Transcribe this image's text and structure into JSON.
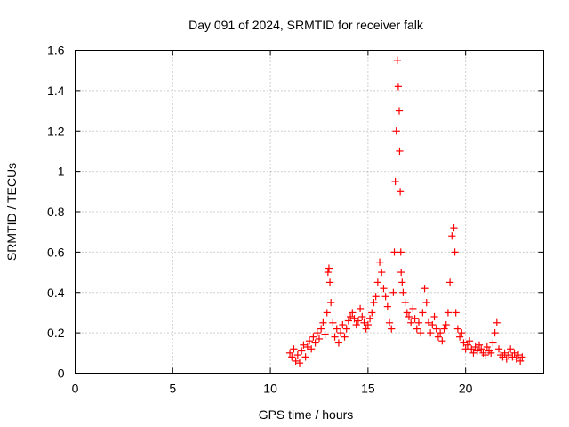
{
  "chart_data": {
    "type": "scatter",
    "title": "Day 091 of 2024, SRMTID for receiver falk",
    "xlabel": "GPS time / hours",
    "ylabel": "SRMTID / TECUs",
    "xlim": [
      0,
      24
    ],
    "ylim": [
      0,
      1.6
    ],
    "xticks": [
      0,
      5,
      10,
      15,
      20
    ],
    "xtick_labels": [
      "0",
      "5",
      "10",
      "15",
      "20"
    ],
    "yticks": [
      0,
      0.2,
      0.4,
      0.6,
      0.8,
      1.0,
      1.2,
      1.4,
      1.6
    ],
    "ytick_labels": [
      "0",
      "0.2",
      "0.4",
      "0.6",
      "0.8",
      "1",
      "1.2",
      "1.4",
      "1.6"
    ],
    "grid": true,
    "marker": "+",
    "marker_color": "#ff0000",
    "series": [
      {
        "name": "SRMTID",
        "x": [
          11.0,
          11.1,
          11.2,
          11.3,
          11.4,
          11.5,
          11.6,
          11.7,
          11.8,
          11.9,
          12.0,
          12.1,
          12.2,
          12.3,
          12.4,
          12.5,
          12.6,
          12.7,
          12.8,
          12.9,
          12.95,
          13.0,
          13.05,
          13.1,
          13.2,
          13.3,
          13.4,
          13.5,
          13.6,
          13.7,
          13.8,
          13.9,
          14.0,
          14.1,
          14.2,
          14.3,
          14.4,
          14.5,
          14.6,
          14.7,
          14.8,
          14.9,
          15.0,
          15.1,
          15.2,
          15.3,
          15.4,
          15.5,
          15.6,
          15.7,
          15.8,
          15.9,
          16.0,
          16.1,
          16.2,
          16.3,
          16.35,
          16.4,
          16.45,
          16.5,
          16.55,
          16.6,
          16.62,
          16.65,
          16.68,
          16.7,
          16.75,
          16.8,
          16.9,
          17.0,
          17.1,
          17.2,
          17.3,
          17.4,
          17.5,
          17.6,
          17.7,
          17.8,
          17.9,
          18.0,
          18.1,
          18.2,
          18.3,
          18.4,
          18.5,
          18.6,
          18.7,
          18.8,
          18.9,
          19.0,
          19.1,
          19.2,
          19.3,
          19.4,
          19.45,
          19.5,
          19.6,
          19.7,
          19.8,
          19.9,
          20.0,
          20.1,
          20.2,
          20.3,
          20.4,
          20.5,
          20.6,
          20.7,
          20.8,
          20.9,
          21.0,
          21.1,
          21.2,
          21.3,
          21.4,
          21.5,
          21.6,
          21.7,
          21.8,
          21.9,
          22.0,
          22.1,
          22.2,
          22.3,
          22.4,
          22.5,
          22.6,
          22.7,
          22.8,
          22.9
        ],
        "y": [
          0.1,
          0.08,
          0.12,
          0.06,
          0.09,
          0.05,
          0.11,
          0.14,
          0.08,
          0.13,
          0.16,
          0.12,
          0.18,
          0.15,
          0.2,
          0.17,
          0.22,
          0.25,
          0.19,
          0.3,
          0.5,
          0.52,
          0.45,
          0.35,
          0.25,
          0.18,
          0.22,
          0.15,
          0.2,
          0.24,
          0.18,
          0.22,
          0.26,
          0.28,
          0.3,
          0.27,
          0.24,
          0.26,
          0.32,
          0.28,
          0.25,
          0.22,
          0.24,
          0.27,
          0.3,
          0.35,
          0.38,
          0.45,
          0.55,
          0.5,
          0.42,
          0.38,
          0.33,
          0.25,
          0.22,
          0.4,
          0.6,
          0.95,
          1.2,
          1.55,
          1.42,
          1.3,
          1.1,
          0.9,
          0.6,
          0.5,
          0.45,
          0.4,
          0.35,
          0.3,
          0.28,
          0.25,
          0.32,
          0.27,
          0.22,
          0.25,
          0.2,
          0.3,
          0.42,
          0.35,
          0.25,
          0.2,
          0.24,
          0.28,
          0.22,
          0.18,
          0.2,
          0.16,
          0.22,
          0.24,
          0.3,
          0.45,
          0.68,
          0.72,
          0.6,
          0.3,
          0.22,
          0.18,
          0.2,
          0.15,
          0.12,
          0.14,
          0.16,
          0.12,
          0.1,
          0.13,
          0.11,
          0.14,
          0.12,
          0.1,
          0.09,
          0.13,
          0.11,
          0.1,
          0.15,
          0.2,
          0.25,
          0.12,
          0.09,
          0.08,
          0.1,
          0.07,
          0.09,
          0.12,
          0.08,
          0.1,
          0.07,
          0.09,
          0.06,
          0.08
        ]
      }
    ]
  }
}
